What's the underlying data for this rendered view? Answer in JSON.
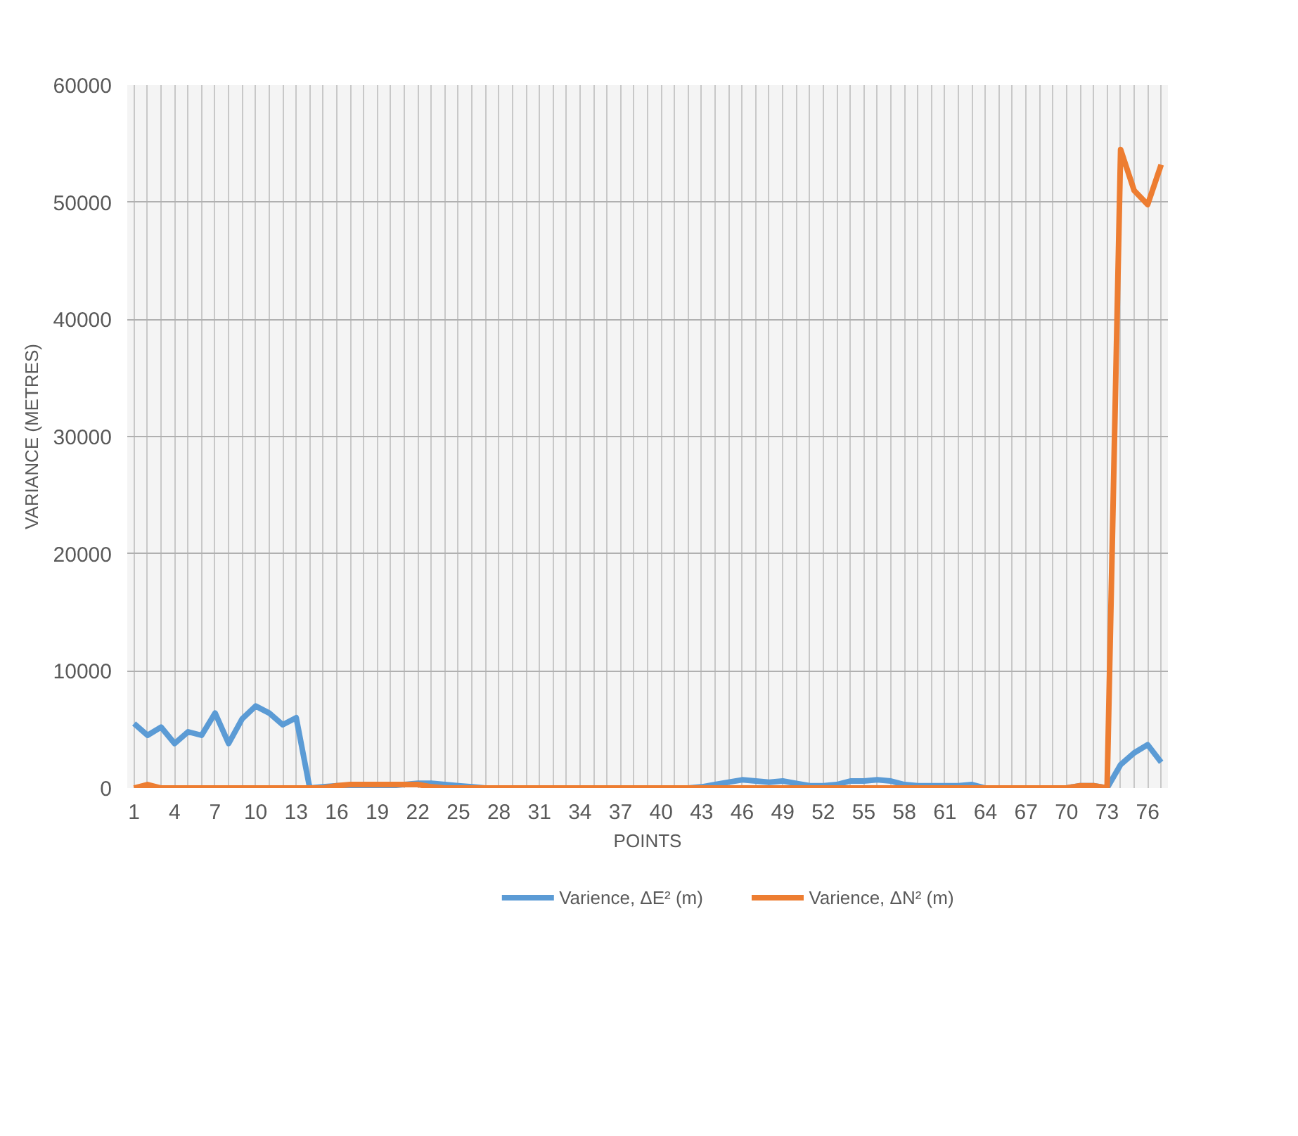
{
  "chart_data": {
    "type": "line",
    "xlabel": "POINTS",
    "ylabel": "VARIANCE (METRES)",
    "categories": [
      "1",
      null,
      null,
      "4",
      null,
      null,
      "7",
      null,
      null,
      "10",
      null,
      null,
      "13",
      null,
      null,
      "16",
      null,
      null,
      "19",
      null,
      null,
      "22",
      null,
      null,
      "25",
      null,
      null,
      "28",
      null,
      null,
      "31",
      null,
      null,
      "34",
      null,
      null,
      "37",
      null,
      null,
      "40",
      null,
      null,
      "43",
      null,
      null,
      "46",
      null,
      null,
      "49",
      null,
      null,
      "52",
      null,
      null,
      "55",
      null,
      null,
      "58",
      null,
      null,
      "61",
      null,
      null,
      "64",
      null,
      null,
      "67",
      null,
      null,
      "70",
      null,
      null,
      "73",
      null,
      null,
      "76",
      null
    ],
    "series": [
      {
        "name": "Varience, ΔE² (m)",
        "color": "#5b9bd5",
        "values": [
          5500,
          4500,
          5200,
          3800,
          4800,
          4500,
          6400,
          3800,
          5900,
          7000,
          6400,
          5400,
          6000,
          0,
          100,
          200,
          200,
          200,
          200,
          200,
          300,
          400,
          400,
          300,
          200,
          100,
          0,
          0,
          0,
          0,
          0,
          0,
          0,
          0,
          0,
          0,
          0,
          0,
          0,
          0,
          0,
          0,
          100,
          300,
          500,
          700,
          600,
          500,
          600,
          400,
          200,
          200,
          300,
          600,
          600,
          700,
          600,
          300,
          200,
          200,
          200,
          200,
          300,
          0,
          0,
          0,
          0,
          0,
          0,
          0,
          200,
          200,
          0,
          2000,
          3000,
          3700,
          2200
        ]
      },
      {
        "name": "Varience, ΔN² (m)",
        "color": "#ed7d31",
        "values": [
          0,
          300,
          0,
          0,
          0,
          0,
          0,
          0,
          0,
          0,
          0,
          0,
          0,
          0,
          0,
          200,
          300,
          300,
          300,
          300,
          300,
          300,
          100,
          0,
          0,
          0,
          0,
          0,
          0,
          0,
          0,
          0,
          0,
          0,
          0,
          0,
          0,
          0,
          0,
          0,
          0,
          0,
          0,
          0,
          0,
          0,
          0,
          0,
          0,
          0,
          0,
          0,
          0,
          0,
          0,
          0,
          0,
          0,
          0,
          0,
          0,
          0,
          0,
          0,
          0,
          0,
          0,
          0,
          0,
          0,
          200,
          200,
          0,
          54500,
          51000,
          49800,
          53200
        ]
      }
    ],
    "ylim": [
      0,
      60000
    ],
    "yticks": [
      0,
      10000,
      20000,
      30000,
      40000,
      50000,
      60000
    ],
    "grid": true,
    "legend": "bottom"
  }
}
